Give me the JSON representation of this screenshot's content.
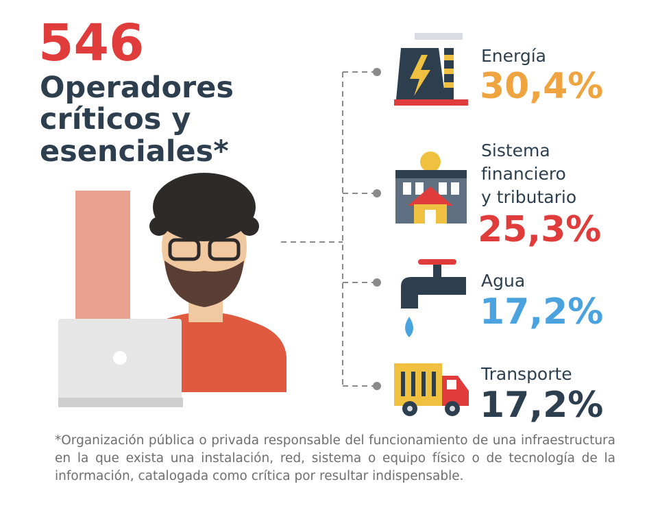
{
  "headline": {
    "number": "546",
    "title_lines": [
      "Operadores",
      "críticos y",
      "esenciales*"
    ]
  },
  "sectors": [
    {
      "label_lines": [
        "Energía"
      ],
      "percent": "30,4%"
    },
    {
      "label_lines": [
        "Sistema",
        "financiero",
        "y tributario"
      ],
      "percent": "25,3%"
    },
    {
      "label_lines": [
        "Agua"
      ],
      "percent": "17,2%"
    },
    {
      "label_lines": [
        "Transporte"
      ],
      "percent": "17,2%"
    }
  ],
  "footnote": "*Organización pública o privada responsable del funcionamiento de una infraestructura en la que exista una instalación, red, sistema o equipo físico o de tecnología de la información, catalogada como crítica por resultar indispensable."
}
